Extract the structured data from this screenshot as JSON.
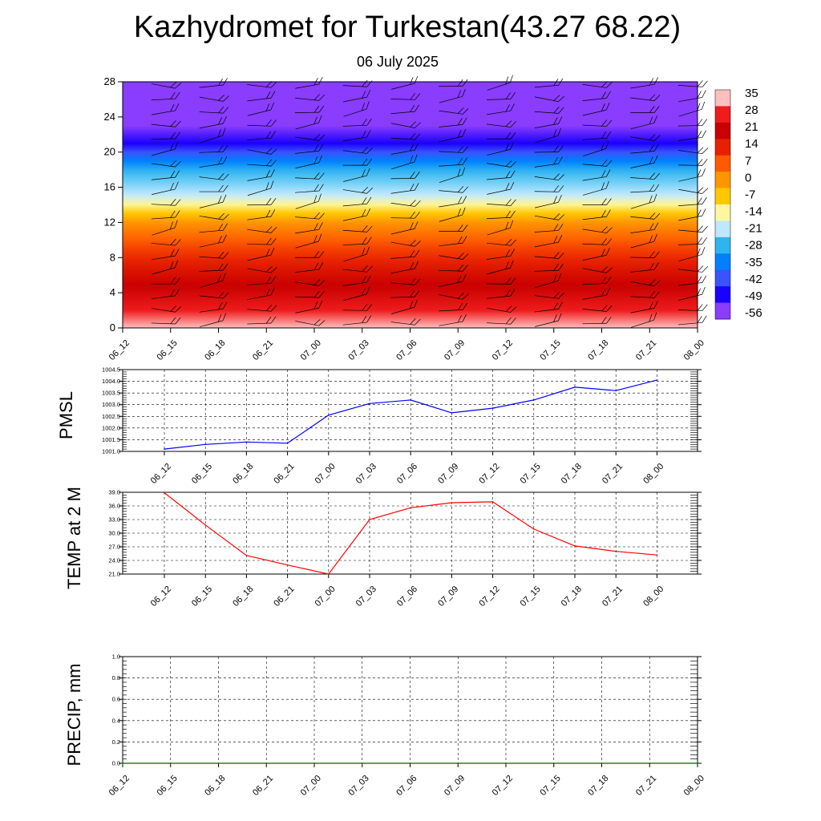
{
  "title": "Kazhydromet for Turkestan(43.27 68.22)",
  "subtitle": "06 July 2025",
  "time_labels": [
    "06_12",
    "06_15",
    "06_18",
    "06_21",
    "07_00",
    "07_03",
    "07_06",
    "07_09",
    "07_12",
    "07_15",
    "07_18",
    "07_21",
    "08_00"
  ],
  "chart_data": [
    {
      "type": "heatmap",
      "name": "temperature_vertical_profile",
      "x": [
        "06_12",
        "06_15",
        "06_18",
        "06_21",
        "07_00",
        "07_03",
        "07_06",
        "07_09",
        "07_12",
        "07_15",
        "07_18",
        "07_21",
        "08_00"
      ],
      "y_ticks": [
        0,
        4,
        8,
        12,
        16,
        20,
        24,
        28
      ],
      "ylim": [
        0,
        28
      ],
      "profile": [
        {
          "level": 0,
          "value": 35
        },
        {
          "level": 2,
          "value": 28
        },
        {
          "level": 6,
          "value": 18
        },
        {
          "level": 9,
          "value": 10
        },
        {
          "level": 12,
          "value": 0
        },
        {
          "level": 13.5,
          "value": -10
        },
        {
          "level": 15,
          "value": -20
        },
        {
          "level": 17,
          "value": -30
        },
        {
          "level": 19,
          "value": -42
        },
        {
          "level": 21,
          "value": -56
        },
        {
          "level": 23,
          "value": -63
        },
        {
          "level": 28,
          "value": -63
        }
      ],
      "wind_barbs": true,
      "colorbar": {
        "labels": [
          35,
          28,
          21,
          14,
          7,
          0,
          -7,
          -14,
          -21,
          -28,
          -35,
          -42,
          -49,
          -56
        ],
        "colors": [
          "#ffbfbf",
          "#ee1c1c",
          "#c80000",
          "#e62000",
          "#ff5a00",
          "#ff9600",
          "#ffc800",
          "#fff7a0",
          "#bfe8ff",
          "#30b4f0",
          "#0080ff",
          "#3a52ff",
          "#1a00ff",
          "#8a3cff"
        ]
      }
    },
    {
      "type": "line",
      "name": "PMSL",
      "ylabel": "PMSL",
      "x": [
        "06_12",
        "06_15",
        "06_18",
        "06_21",
        "07_00",
        "07_03",
        "07_06",
        "07_09",
        "07_12",
        "07_15",
        "07_18",
        "07_21",
        "08_00"
      ],
      "y_ticks": [
        "1001.0",
        "1001.5",
        "1002.0",
        "1002.5",
        "1003.0",
        "1003.5",
        "1004.0",
        "1004.5"
      ],
      "ylim": [
        1001.0,
        1004.5
      ],
      "series": [
        {
          "values": [
            1001.1,
            1001.3,
            1001.4,
            1001.35,
            1002.55,
            1003.05,
            1003.2,
            1002.65,
            1002.85,
            1003.2,
            1003.75,
            1003.6,
            1004.05
          ],
          "color": "#0000ff"
        }
      ],
      "grid": true
    },
    {
      "type": "line",
      "name": "TEMP at 2 M",
      "ylabel": "TEMP at 2 M",
      "x": [
        "06_12",
        "06_15",
        "06_18",
        "06_21",
        "07_00",
        "07_03",
        "07_06",
        "07_09",
        "07_12",
        "07_15",
        "07_18",
        "07_21",
        "08_00"
      ],
      "y_ticks": [
        "21.0",
        "24.0",
        "27.0",
        "30.0",
        "33.0",
        "36.0",
        "39.0"
      ],
      "ylim": [
        21.0,
        39.0
      ],
      "series": [
        {
          "values": [
            38.9,
            31.8,
            25.1,
            23.0,
            21.0,
            33.0,
            35.6,
            36.7,
            36.9,
            30.9,
            27.2,
            26.0,
            25.2
          ],
          "color": "#ff0000"
        }
      ],
      "grid": true
    },
    {
      "type": "line",
      "name": "PRECIP, mm",
      "ylabel": "PRECIP, mm",
      "x": [
        "06_12",
        "06_15",
        "06_18",
        "06_21",
        "07_00",
        "07_03",
        "07_06",
        "07_09",
        "07_12",
        "07_15",
        "07_18",
        "07_21",
        "08_00"
      ],
      "y_ticks": [
        "0.0",
        "0.2",
        "0.4",
        "0.6",
        "0.8",
        "1.0"
      ],
      "ylim": [
        0.0,
        1.0
      ],
      "series": [
        {
          "values": [
            0,
            0,
            0,
            0,
            0,
            0,
            0,
            0,
            0,
            0,
            0,
            0,
            0
          ],
          "color": "#006400"
        }
      ],
      "grid": true
    }
  ]
}
